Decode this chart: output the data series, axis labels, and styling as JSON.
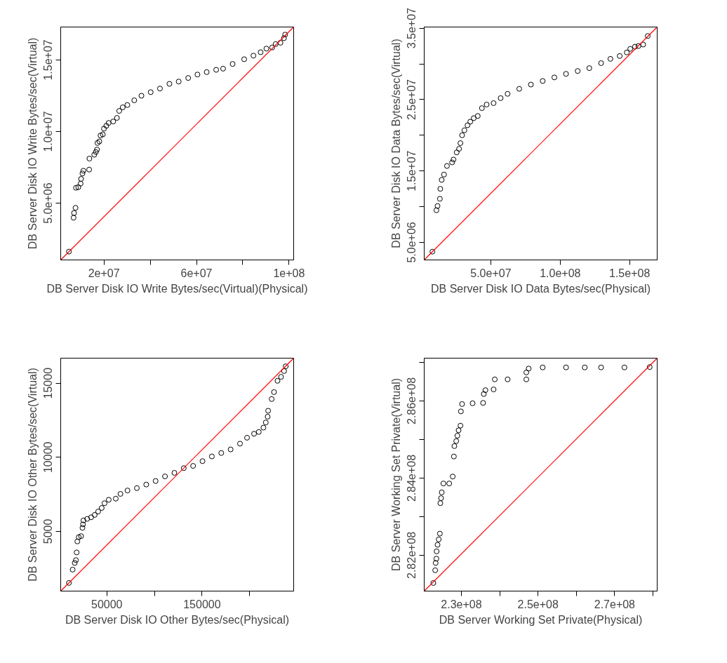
{
  "chart_data": [
    {
      "type": "scatter",
      "xlabel": "DB Server Disk IO Write Bytes/sec(Virtual)(Physical)",
      "ylabel": "DB Server Disk IO Write Bytes/sec(Virtual)",
      "xlim": [
        1300000,
        102000000
      ],
      "ylim": [
        1030000,
        17300000
      ],
      "xticks": [
        {
          "value": 20000000,
          "label": "2e+07"
        },
        {
          "value": 40000000,
          "label": null
        },
        {
          "value": 60000000,
          "label": "6e+07"
        },
        {
          "value": 80000000,
          "label": null
        },
        {
          "value": 100000000,
          "label": "1e+08"
        }
      ],
      "yticks": [
        {
          "value": 5000000,
          "label": "5.0e+06"
        },
        {
          "value": 10000000,
          "label": "1.0e+07"
        },
        {
          "value": 15000000,
          "label": "1.5e+07"
        }
      ],
      "grid": false,
      "series": [
        {
          "marker": "circle",
          "color": "#000000",
          "x": [
            4850000,
            6870000,
            7070000,
            7700000,
            7900000,
            8900000,
            9900000,
            10100000,
            10700000,
            11100000,
            13600000,
            13700000,
            15800000,
            16500000,
            17000000,
            17200000,
            18000000,
            18500000,
            19500000,
            20000000,
            21000000,
            22000000,
            24000000,
            25600000,
            26600000,
            28100000,
            30100000,
            33100000,
            36200000,
            40200000,
            44200000,
            48300000,
            52300000,
            56400000,
            60400000,
            64400000,
            68500000,
            71500000,
            75600000,
            80600000,
            84600000,
            87700000,
            90200000,
            92700000,
            94200000,
            96300000,
            97800000,
            98300000
          ],
          "values": [
            1610000,
            3980000,
            4310000,
            4670000,
            6070000,
            6110000,
            6360000,
            6690000,
            7070000,
            7260000,
            7340000,
            8110000,
            8380000,
            8570000,
            8740000,
            9200000,
            9310000,
            9720000,
            9800000,
            10200000,
            10400000,
            10600000,
            10700000,
            10950000,
            11440000,
            11690000,
            11850000,
            12180000,
            12500000,
            12750000,
            13000000,
            13330000,
            13490000,
            13740000,
            13980000,
            14150000,
            14310000,
            14390000,
            14720000,
            15050000,
            15300000,
            15540000,
            15790000,
            15870000,
            16110000,
            16200000,
            16520000,
            16770000
          ]
        },
        {
          "type": "line",
          "color": "#ff0000",
          "x": [
            1300000,
            102000000
          ],
          "values": [
            1030000,
            17300000
          ]
        }
      ]
    },
    {
      "type": "scatter",
      "xlabel": "DB Server Disk IO Data Bytes/sec(Physical)",
      "ylabel": "DB Server Disk IO Data Bytes/sec(Virtual)",
      "xlim": [
        2000000,
        169900000
      ],
      "ylim": [
        2540000,
        35160000
      ],
      "xticks": [
        {
          "value": 50000000,
          "label": "5.0e+07"
        },
        {
          "value": 100000000,
          "label": "1.0e+08"
        },
        {
          "value": 150000000,
          "label": "1.5e+08"
        }
      ],
      "yticks": [
        {
          "value": 5000000,
          "label": "5.0e+06"
        },
        {
          "value": 10000000,
          "label": null
        },
        {
          "value": 15000000,
          "label": "1.5e+07"
        },
        {
          "value": 20000000,
          "label": null
        },
        {
          "value": 25000000,
          "label": "2.5e+07"
        },
        {
          "value": 30000000,
          "label": null
        },
        {
          "value": 35000000,
          "label": "3.5e+07"
        }
      ],
      "grid": false,
      "series": [
        {
          "marker": "circle",
          "color": "#000000",
          "x": [
            7900000,
            10800000,
            11600000,
            13300000,
            13600000,
            14600000,
            16300000,
            18400000,
            22100000,
            23100000,
            25400000,
            27100000,
            28100000,
            29300000,
            31000000,
            33200000,
            35200000,
            37700000,
            40600000,
            43600000,
            47000000,
            52000000,
            57100000,
            62100000,
            70500000,
            78900000,
            87400000,
            95800000,
            104200000,
            112600000,
            121000000,
            129500000,
            136200000,
            142900000,
            148000000,
            150500000,
            153900000,
            156400000,
            159800000,
            163100000
          ],
          "values": [
            3700000,
            9500000,
            10100000,
            11100000,
            12500000,
            13750000,
            14500000,
            15700000,
            16200000,
            16600000,
            17600000,
            18100000,
            18900000,
            20000000,
            20700000,
            21400000,
            21900000,
            22400000,
            22700000,
            23800000,
            24300000,
            24500000,
            25200000,
            25800000,
            26500000,
            27100000,
            27600000,
            28100000,
            28600000,
            29000000,
            29400000,
            30100000,
            30700000,
            31100000,
            31600000,
            32100000,
            32400000,
            32500000,
            32700000,
            33900000
          ]
        },
        {
          "type": "line",
          "color": "#ff0000",
          "x": [
            2000000,
            169900000
          ],
          "values": [
            2540000,
            35160000
          ]
        }
      ]
    },
    {
      "type": "scatter",
      "xlabel": "DB Server Disk IO Other Bytes/sec(Physical)",
      "ylabel": "DB Server Disk IO Other Bytes/sec(Virtual)",
      "xlim": [
        1500,
        246300
      ],
      "ylim": [
        970,
        16690
      ],
      "xticks": [
        50000,
        {
          "value": 100000,
          "label": null
        },
        150000,
        {
          "value": 200000,
          "label": null
        }
      ],
      "yticks": [
        5000,
        10000,
        15000
      ],
      "grid": false,
      "series": [
        {
          "marker": "circle",
          "color": "#000000",
          "x": [
            10100,
            14040,
            16260,
            17490,
            18230,
            18970,
            20440,
            22900,
            24380,
            24880,
            25370,
            29310,
            33500,
            37190,
            40890,
            44580,
            47540,
            51970,
            59360,
            64290,
            71670,
            81530,
            91380,
            101230,
            111080,
            120940,
            130790,
            140640,
            150490,
            160340,
            170200,
            180050,
            189900,
            197290,
            204680,
            209610,
            214530,
            217000,
            218960,
            219460,
            223150,
            225620,
            229310,
            233000,
            236210,
            237930
          ],
          "values": [
            1520,
            2420,
            2870,
            3060,
            3580,
            4320,
            4610,
            4680,
            5240,
            5470,
            5740,
            5840,
            5950,
            6110,
            6340,
            6580,
            6900,
            7130,
            7210,
            7530,
            7760,
            7920,
            8160,
            8400,
            8710,
            8950,
            9270,
            9420,
            9740,
            10060,
            10290,
            10530,
            10920,
            11320,
            11590,
            11710,
            12000,
            12350,
            12740,
            13140,
            13930,
            14400,
            15160,
            15430,
            15820,
            16140
          ]
        },
        {
          "type": "line",
          "color": "#ff0000",
          "x": [
            1500,
            246300
          ],
          "values": [
            970,
            16690
          ]
        }
      ]
    },
    {
      "type": "scatter",
      "xlabel": "DB Server Working Set Private(Physical)",
      "ylabel": "DB Server Working Set Private(Virtual)",
      "xlim": [
        220300000,
        281100000
      ],
      "ylim": [
        281070000,
        287110000
      ],
      "xticks": [
        {
          "value": 230000000,
          "label": "2.3e+08"
        },
        {
          "value": 240000000,
          "label": null
        },
        {
          "value": 250000000,
          "label": "2.5e+08"
        },
        {
          "value": 260000000,
          "label": null
        },
        {
          "value": 270000000,
          "label": "2.7e+08"
        },
        {
          "value": 280000000,
          "label": null
        }
      ],
      "yticks": [
        {
          "value": 282000000,
          "label": "2.82e+08"
        },
        {
          "value": 283000000,
          "label": null
        },
        {
          "value": 284000000,
          "label": "2.84e+08"
        },
        {
          "value": 285000000,
          "label": null
        },
        {
          "value": 286000000,
          "label": "2.86e+08"
        },
        {
          "value": 287000000,
          "label": null
        }
      ],
      "grid": false,
      "series": [
        {
          "marker": "circle",
          "color": "#000000",
          "x": [
            222680000,
            223170000,
            223290000,
            223480000,
            223540000,
            223780000,
            224090000,
            224390000,
            224510000,
            224700000,
            224880000,
            225300000,
            226830000,
            227740000,
            228050000,
            228170000,
            228660000,
            228960000,
            229270000,
            229760000,
            229880000,
            230180000,
            232930000,
            235670000,
            235850000,
            236280000,
            238410000,
            238720000,
            242070000,
            246950000,
            246950000,
            247560000,
            251220000,
            257320000,
            262200000,
            266460000,
            272560000,
            279150000
          ],
          "values": [
            281280000,
            281610000,
            281800000,
            281910000,
            282100000,
            282270000,
            282410000,
            282560000,
            283350000,
            283480000,
            283630000,
            283860000,
            283860000,
            284040000,
            284560000,
            284830000,
            284960000,
            285100000,
            285240000,
            285360000,
            285730000,
            285920000,
            285940000,
            285950000,
            286180000,
            286280000,
            286300000,
            286560000,
            286560000,
            286560000,
            286740000,
            286840000,
            286870000,
            286870000,
            286870000,
            286870000,
            286870000,
            286880000
          ]
        },
        {
          "type": "line",
          "color": "#ff0000",
          "x": [
            220300000,
            281100000
          ],
          "values": [
            281070000,
            287110000
          ]
        }
      ]
    }
  ]
}
